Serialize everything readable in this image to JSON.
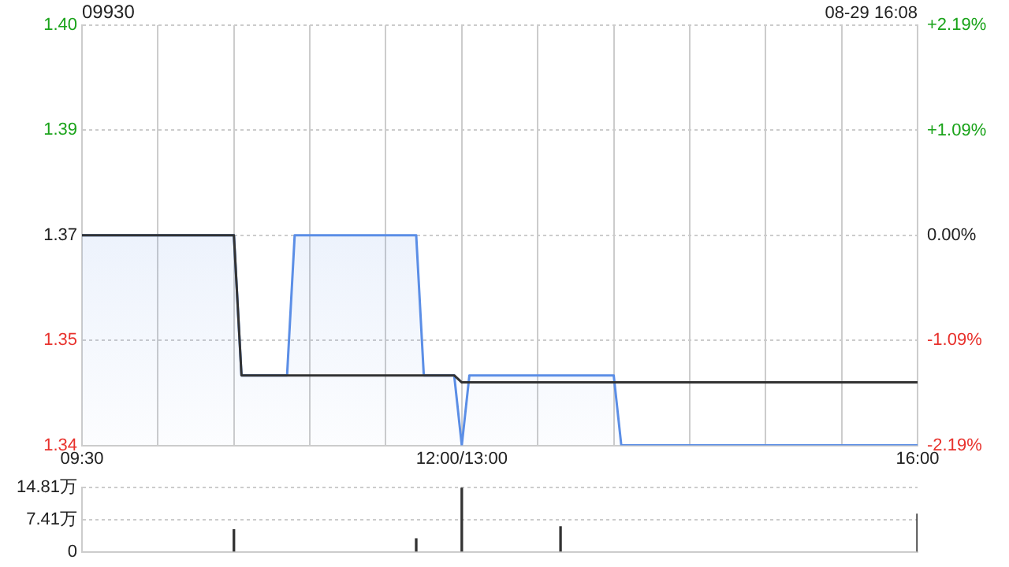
{
  "chart_data": [
    {
      "type": "area",
      "title": "09930",
      "annotations": [
        "08-29 16:08"
      ],
      "categories": [
        "09:30",
        null,
        null,
        null,
        null,
        null,
        null,
        null,
        null,
        null,
        null,
        null,
        null,
        null,
        null,
        null,
        null,
        null,
        null,
        null,
        null,
        null,
        null,
        null,
        null,
        null,
        null,
        null,
        null,
        null,
        null,
        null,
        null,
        null,
        null,
        null,
        null,
        null,
        null,
        null,
        null,
        null,
        null,
        null,
        null,
        null,
        null,
        null,
        null,
        null,
        "12:00/13:00",
        null,
        null,
        null,
        null,
        null,
        null,
        null,
        null,
        null,
        null,
        null,
        null,
        null,
        null,
        null,
        null,
        null,
        null,
        null,
        null,
        null,
        null,
        null,
        null,
        null,
        null,
        null,
        null,
        null,
        null,
        null,
        null,
        null,
        null,
        null,
        null,
        null,
        null,
        null,
        null,
        null,
        null,
        null,
        null,
        null,
        null,
        null,
        null,
        null,
        null,
        null,
        null,
        null,
        null,
        null,
        null,
        null,
        null,
        null,
        "16:00"
      ],
      "series": [
        {
          "color": "#5b8ee6",
          "values": [
            1.37,
            1.37,
            1.37,
            1.37,
            1.37,
            1.37,
            1.37,
            1.37,
            1.37,
            1.37,
            1.37,
            1.37,
            1.37,
            1.37,
            1.37,
            1.37,
            1.37,
            1.37,
            1.37,
            1.37,
            1.37,
            1.35,
            1.35,
            1.35,
            1.35,
            1.35,
            1.35,
            1.35,
            1.37,
            1.37,
            1.37,
            1.37,
            1.37,
            1.37,
            1.37,
            1.37,
            1.37,
            1.37,
            1.37,
            1.37,
            1.37,
            1.37,
            1.37,
            1.37,
            1.37,
            1.35,
            1.35,
            1.35,
            1.35,
            1.35,
            1.34,
            1.35,
            1.35,
            1.35,
            1.35,
            1.35,
            1.35,
            1.35,
            1.35,
            1.35,
            1.35,
            1.35,
            1.35,
            1.35,
            1.35,
            1.35,
            1.35,
            1.35,
            1.35,
            1.35,
            1.35,
            1.34,
            1.34,
            1.34,
            1.34,
            1.34,
            1.34,
            1.34,
            1.34,
            1.34,
            1.34,
            1.34,
            1.34,
            1.34,
            1.34,
            1.34,
            1.34,
            1.34,
            1.34,
            1.34,
            1.34,
            1.34,
            1.34,
            1.34,
            1.34,
            1.34,
            1.34,
            1.34,
            1.34,
            1.34,
            1.34,
            1.34,
            1.34,
            1.34,
            1.34,
            1.34,
            1.34,
            1.34,
            1.34,
            1.34,
            1.34
          ]
        },
        {
          "type": "line",
          "color": "#333333",
          "values": [
            1.37,
            1.37,
            1.37,
            1.37,
            1.37,
            1.37,
            1.37,
            1.37,
            1.37,
            1.37,
            1.37,
            1.37,
            1.37,
            1.37,
            1.37,
            1.37,
            1.37,
            1.37,
            1.37,
            1.37,
            1.37,
            1.35,
            1.35,
            1.35,
            1.35,
            1.35,
            1.35,
            1.35,
            1.35,
            1.35,
            1.35,
            1.35,
            1.35,
            1.35,
            1.35,
            1.35,
            1.35,
            1.35,
            1.35,
            1.35,
            1.35,
            1.35,
            1.35,
            1.35,
            1.35,
            1.35,
            1.35,
            1.35,
            1.35,
            1.35,
            1.349,
            1.349,
            1.349,
            1.349,
            1.349,
            1.349,
            1.349,
            1.349,
            1.349,
            1.349,
            1.349,
            1.349,
            1.349,
            1.349,
            1.349,
            1.349,
            1.349,
            1.349,
            1.349,
            1.349,
            1.349,
            1.349,
            1.349,
            1.349,
            1.349,
            1.349,
            1.349,
            1.349,
            1.349,
            1.349,
            1.349,
            1.349,
            1.349,
            1.349,
            1.349,
            1.349,
            1.349,
            1.349,
            1.349,
            1.349,
            1.349,
            1.349,
            1.349,
            1.349,
            1.349,
            1.349,
            1.349,
            1.349,
            1.349,
            1.349,
            1.349,
            1.349,
            1.349,
            1.349,
            1.349,
            1.349,
            1.349,
            1.349,
            1.349,
            1.349,
            1.349
          ]
        }
      ],
      "ylim": [
        1.34,
        1.4
      ],
      "yticks": [
        {
          "value": 1.34,
          "label": "1.34"
        },
        {
          "value": 1.355,
          "label": "1.35"
        },
        {
          "value": 1.37,
          "label": "1.37"
        },
        {
          "value": 1.385,
          "label": "1.39"
        },
        {
          "value": 1.4,
          "label": "1.40"
        }
      ],
      "y2lim": [
        -2.19,
        2.19
      ],
      "y2ticks": [
        {
          "value": -2.19,
          "label": "-2.19%"
        },
        {
          "value": -1.09,
          "label": "-1.09%"
        },
        {
          "value": 0,
          "label": "0.00%"
        },
        {
          "value": 1.09,
          "label": "+1.09%"
        },
        {
          "value": 2.19,
          "label": "+2.19%"
        }
      ],
      "grid": true,
      "legend": false,
      "marker": "none",
      "line_style": "solid"
    },
    {
      "type": "bar",
      "color": "#333333",
      "categories": [
        null,
        null,
        null,
        null,
        null,
        null,
        null,
        null,
        null,
        null,
        null,
        null,
        null,
        null,
        null,
        null,
        null,
        null,
        null,
        null,
        null,
        null,
        null,
        null,
        null,
        null,
        null,
        null,
        null,
        null,
        null,
        null,
        null,
        null,
        null,
        null,
        null,
        null,
        null,
        null,
        null,
        null,
        null,
        null,
        null,
        null,
        null,
        null,
        null,
        null,
        null,
        null,
        null,
        null,
        null,
        null,
        null,
        null,
        null,
        null,
        null,
        null,
        null,
        null,
        null,
        null,
        null,
        null,
        null,
        null,
        null,
        null,
        null,
        null,
        null,
        null,
        null,
        null,
        null,
        null,
        null,
        null,
        null,
        null,
        null,
        null,
        null,
        null,
        null,
        null,
        null,
        null,
        null,
        null,
        null,
        null,
        null,
        null,
        null,
        null,
        null,
        null,
        null,
        null,
        null,
        null,
        null,
        null,
        null,
        null,
        null
      ],
      "values": [
        null,
        null,
        null,
        null,
        null,
        null,
        null,
        null,
        null,
        null,
        null,
        null,
        null,
        null,
        null,
        null,
        null,
        null,
        null,
        null,
        5.1,
        null,
        null,
        null,
        null,
        null,
        null,
        null,
        null,
        null,
        null,
        null,
        null,
        null,
        null,
        null,
        null,
        null,
        null,
        null,
        null,
        null,
        null,
        null,
        3.0,
        null,
        null,
        null,
        null,
        null,
        14.8,
        null,
        null,
        null,
        null,
        null,
        null,
        null,
        null,
        null,
        null,
        null,
        null,
        5.8,
        null,
        null,
        null,
        null,
        null,
        null,
        null,
        null,
        null,
        null,
        null,
        null,
        null,
        null,
        null,
        null,
        null,
        null,
        null,
        null,
        null,
        null,
        null,
        null,
        null,
        null,
        null,
        null,
        null,
        null,
        null,
        null,
        null,
        null,
        null,
        null,
        null,
        null,
        null,
        null,
        null,
        null,
        null,
        null,
        null,
        null,
        8.7
      ],
      "ylim": [
        0,
        14.81
      ],
      "yticks": [
        0,
        {
          "value": 7.41,
          "label": "7.41万"
        },
        {
          "value": 14.81,
          "label": "14.81万"
        }
      ],
      "tick_labels": "y",
      "grid": "y",
      "legend": false
    }
  ]
}
